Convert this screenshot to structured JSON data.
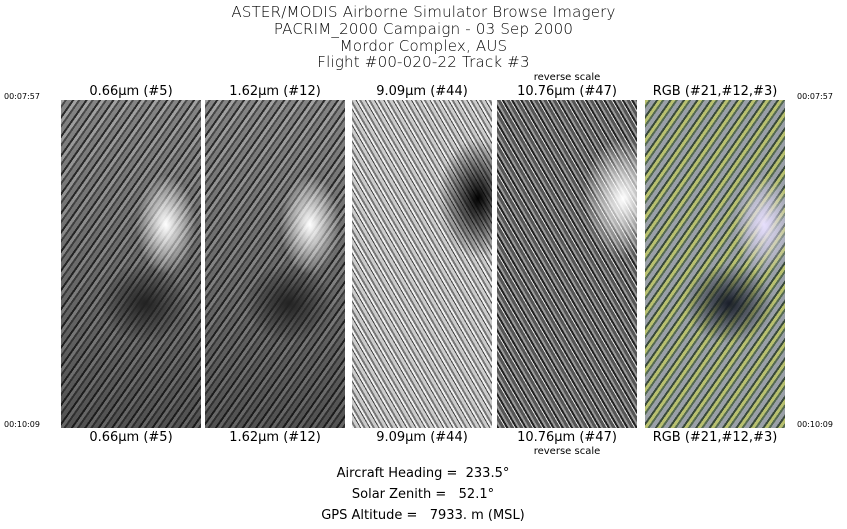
{
  "title": {
    "line1": "ASTER/MODIS Airborne Simulator Browse Imagery",
    "line2": "PACRIM_2000 Campaign - 03 Sep 2000",
    "line3": "Mordor Complex, AUS",
    "line4": "Flight #00-020-22 Track #3"
  },
  "times": {
    "start": "00:07:57",
    "end": "00:10:09"
  },
  "panels": [
    {
      "label": "0.66µm (#5)",
      "note": ""
    },
    {
      "label": "1.62µm (#12)",
      "note": ""
    },
    {
      "label": "9.09µm (#44)",
      "note": ""
    },
    {
      "label": "10.76µm (#47)",
      "note": "reverse scale"
    },
    {
      "label": "RGB (#21,#12,#3)",
      "note": ""
    }
  ],
  "info": {
    "heading": "Aircraft Heading =  233.5°",
    "zenith": "Solar Zenith =   52.1°",
    "altitude": "GPS Altitude =   7933. m (MSL)"
  }
}
